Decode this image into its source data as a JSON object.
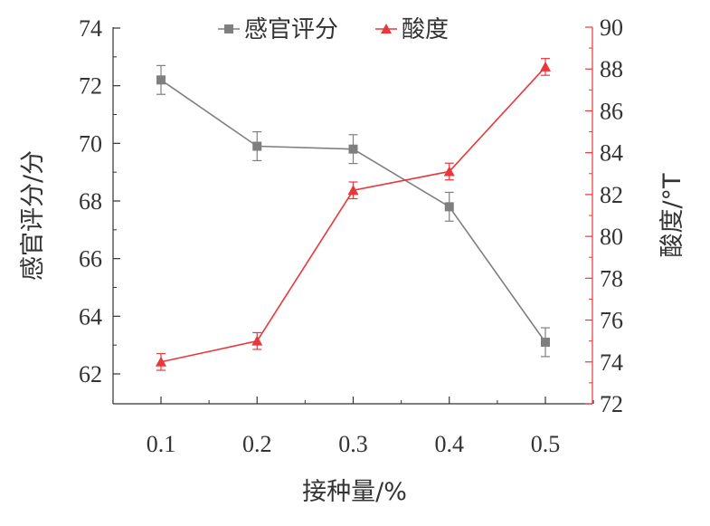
{
  "chart_data": {
    "type": "line",
    "x": [
      0.1,
      0.2,
      0.3,
      0.4,
      0.5
    ],
    "x_ticks": [
      "0.1",
      "0.2",
      "0.3",
      "0.4",
      "0.5"
    ],
    "xlabel": "接种量/%",
    "ylabel_left": "感官评分/分",
    "ylabel_right": "酸度/°T",
    "ylim_left": [
      61.5,
      74
    ],
    "yticks_left": [
      "62",
      "64",
      "66",
      "68",
      "70",
      "72",
      "74"
    ],
    "ylim_right": [
      72,
      90
    ],
    "yticks_right": [
      "72",
      "74",
      "76",
      "78",
      "80",
      "82",
      "84",
      "86",
      "88",
      "90"
    ],
    "legend_position": "top",
    "series": [
      {
        "name": "感官评分",
        "axis": "left",
        "marker": "square",
        "color": "#7f7f7f",
        "values": [
          72.2,
          69.9,
          69.8,
          67.8,
          63.1
        ],
        "errors": [
          0.5,
          0.5,
          0.5,
          0.5,
          0.5
        ]
      },
      {
        "name": "酸度",
        "axis": "right",
        "marker": "triangle",
        "color": "#e8383b",
        "values": [
          74.0,
          75.0,
          82.2,
          83.1,
          88.1
        ],
        "errors": [
          0.4,
          0.4,
          0.4,
          0.4,
          0.4
        ]
      }
    ]
  }
}
